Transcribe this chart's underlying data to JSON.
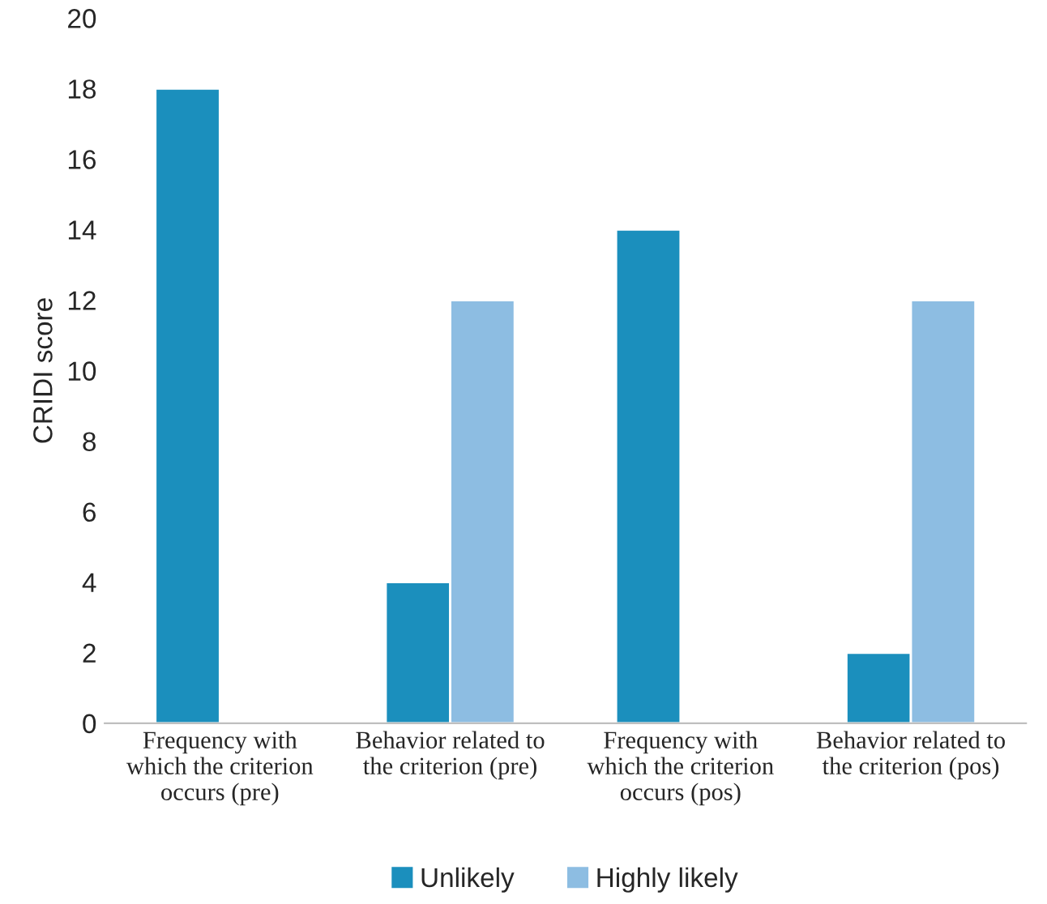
{
  "chart_data": {
    "type": "bar",
    "ylabel": "CRIDI score",
    "categories": [
      "Frequency with\nwhich the criterion\noccurs (pre)",
      "Behavior related to\nthe criterion (pre)",
      "Frequency with\nwhich the criterion\noccurs (pos)",
      "Behavior related to\nthe criterion (pos)"
    ],
    "series": [
      {
        "name": "Unlikely",
        "color": "#1b8fbd",
        "values": [
          18,
          4,
          14,
          2
        ]
      },
      {
        "name": "Highly likely",
        "color": "#8dbde2",
        "values": [
          null,
          12,
          null,
          12
        ]
      }
    ],
    "ylim": [
      0,
      20
    ],
    "yticks": [
      0,
      2,
      4,
      6,
      8,
      10,
      12,
      14,
      16,
      18,
      20
    ],
    "grid": false,
    "legend": "bottom"
  }
}
